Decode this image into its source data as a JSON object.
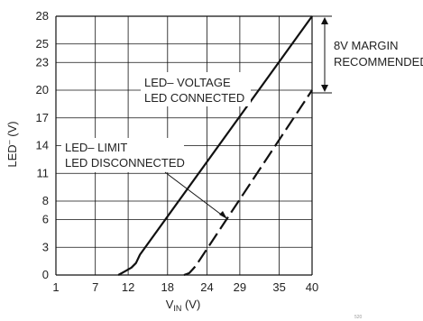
{
  "chart_data": {
    "type": "line",
    "xlabel_main": "V",
    "xlabel_sub": "IN",
    "xlabel_unit": " (V)",
    "ylabel_main": "LED",
    "ylabel_sup": "–",
    "ylabel_unit": " (V)",
    "x_ticks": [
      "1",
      "7",
      "12",
      "18",
      "24",
      "29",
      "35",
      "40"
    ],
    "x_tick_values": [
      1,
      7,
      12,
      18,
      24,
      29,
      35,
      40
    ],
    "y_ticks": [
      "0",
      "3",
      "6",
      "8",
      "11",
      "14",
      "17",
      "20",
      "23",
      "25",
      "28"
    ],
    "y_tick_values": [
      0,
      3,
      6,
      8,
      11,
      14,
      17,
      20,
      23,
      25,
      28
    ],
    "xlim": [
      1,
      40
    ],
    "ylim": [
      0,
      28
    ],
    "grid": true,
    "series": [
      {
        "name_line1": "LED– VOLTAGE",
        "name_line2": "LED CONNECTED",
        "style": "solid",
        "x": [
          10.5,
          11.5,
          12.5,
          13.2,
          13.8,
          40
        ],
        "y": [
          0,
          0.4,
          0.8,
          1.3,
          2.2,
          28
        ]
      },
      {
        "name_line1": "LED– LIMIT",
        "name_line2": "LED DISCONNECTED",
        "style": "dashed",
        "x": [
          20.5,
          21.3,
          21.8,
          22.3,
          40
        ],
        "y": [
          0,
          0.2,
          0.6,
          1.0,
          20
        ]
      }
    ],
    "margin_label_line1": "8V MARGIN",
    "margin_label_line2": "RECOMMENDED",
    "margin_range": [
      20,
      28
    ],
    "figure_id": "520"
  }
}
